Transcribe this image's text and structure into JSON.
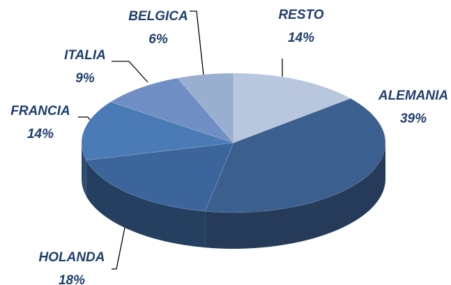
{
  "chart_data": {
    "type": "pie",
    "categories": [
      "RESTO",
      "ALEMANIA",
      "HOLANDA",
      "FRANCIA",
      "ITALIA",
      "BELGICA"
    ],
    "values": [
      14,
      39,
      18,
      14,
      9,
      6
    ],
    "value_labels": [
      "14%",
      "39%",
      "18%",
      "14%",
      "9%",
      "6%"
    ],
    "colors": [
      "#b9c7de",
      "#3b5f8f",
      "#3c659c",
      "#4a7bb6",
      "#6f8fc4",
      "#9aaed0"
    ]
  }
}
